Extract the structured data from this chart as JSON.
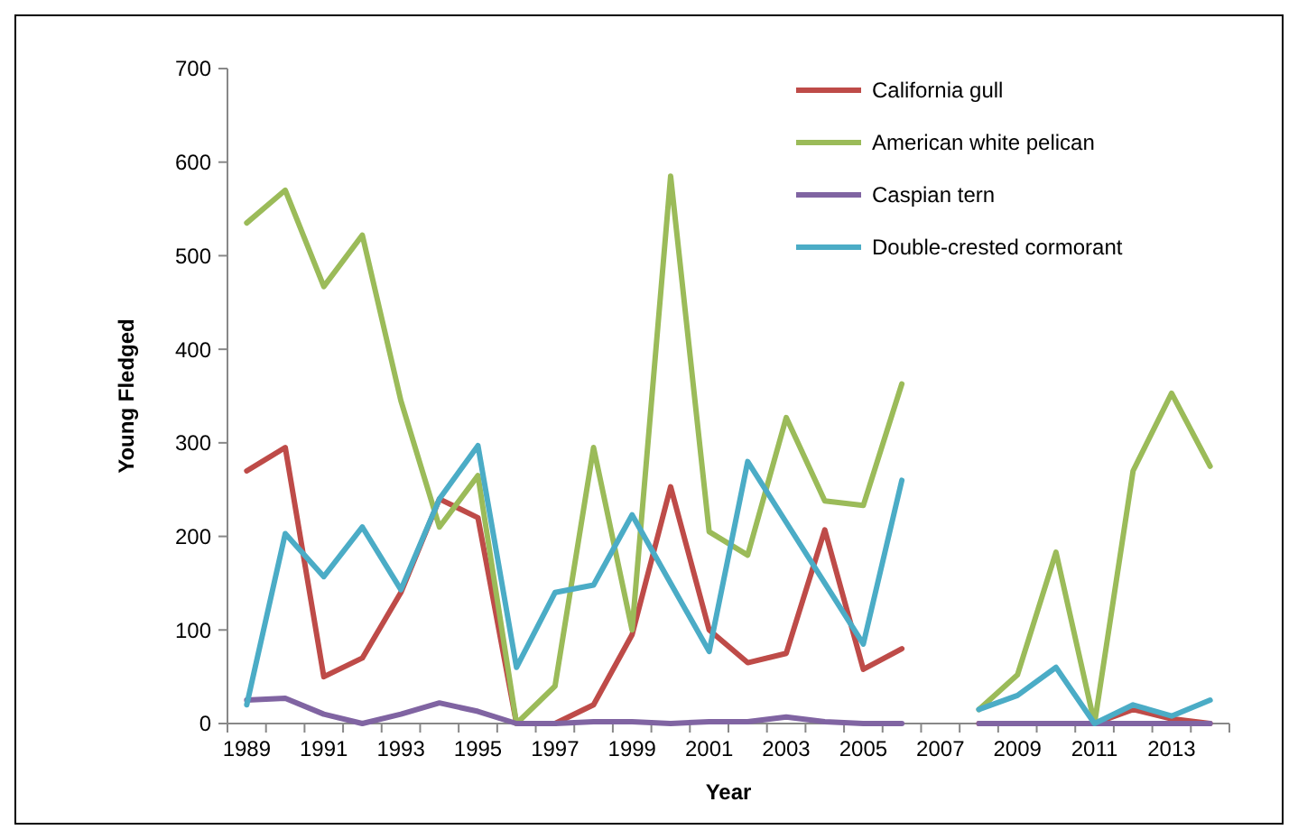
{
  "chart_data": {
    "type": "line",
    "xlabel": "Year",
    "ylabel": "Young Fledged",
    "categories": [
      "1989",
      null,
      "1991",
      null,
      "1993",
      null,
      "1995",
      null,
      "1997",
      null,
      "1999",
      null,
      "2001",
      null,
      "2003",
      null,
      "2005",
      null,
      "2007",
      null,
      "2009",
      null,
      "2011",
      null,
      "2013",
      null
    ],
    "series": [
      {
        "name": "California gull",
        "color": "#be4b48",
        "values": [
          270,
          295,
          50,
          70,
          140,
          240,
          220,
          0,
          0,
          20,
          95,
          253,
          100,
          65,
          75,
          207,
          58,
          80,
          null,
          0,
          0,
          0,
          0,
          15,
          5,
          0
        ]
      },
      {
        "name": "American white pelican",
        "color": "#9bbb59",
        "values": [
          535,
          570,
          467,
          522,
          345,
          210,
          265,
          0,
          40,
          295,
          100,
          585,
          205,
          180,
          327,
          238,
          233,
          363,
          null,
          15,
          52,
          183,
          0,
          270,
          353,
          275
        ]
      },
      {
        "name": "Caspian tern",
        "color": "#8064a2",
        "values": [
          25,
          27,
          10,
          0,
          10,
          22,
          13,
          0,
          0,
          2,
          2,
          0,
          2,
          2,
          7,
          2,
          0,
          0,
          null,
          0,
          0,
          0,
          0,
          0,
          0,
          0
        ]
      },
      {
        "name": "Double-crested cormorant",
        "color": "#4bacc6",
        "values": [
          20,
          203,
          157,
          210,
          143,
          240,
          297,
          60,
          140,
          148,
          223,
          150,
          77,
          280,
          215,
          150,
          85,
          260,
          null,
          15,
          30,
          60,
          0,
          20,
          8,
          25
        ]
      }
    ],
    "ylim": [
      0,
      700
    ],
    "yticks": [
      0,
      100,
      200,
      300,
      400,
      500,
      600,
      700
    ],
    "grid": false,
    "legend": "top right",
    "marker": "none",
    "line_style": "solid"
  }
}
